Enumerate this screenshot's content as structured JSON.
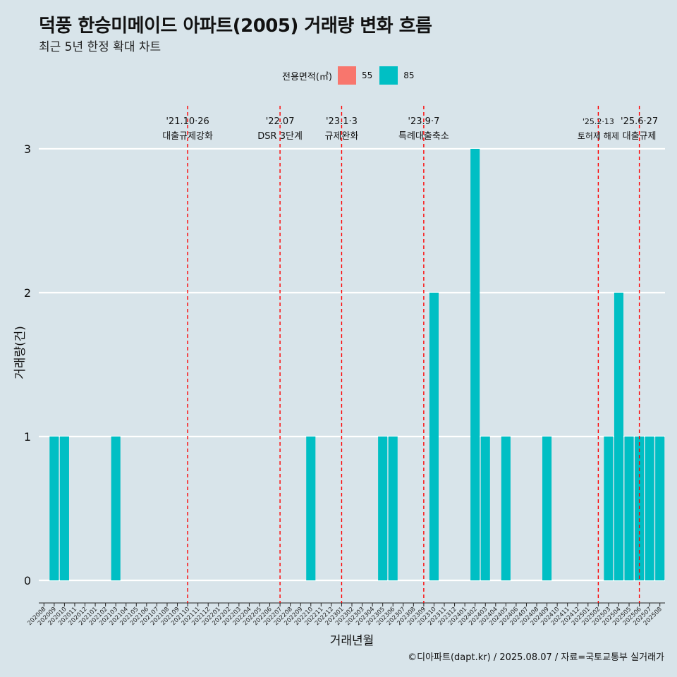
{
  "title": "덕풍 한승미메이드 아파트(2005) 거래량 변화 흐름",
  "subtitle": "최근 5년 한정 확대 차트",
  "caption": "©디아파트(dapt.kr) / 2025.08.07 / 자료=국토교통부 실거래가",
  "legend": {
    "title": "전용면적(㎡)",
    "items": [
      {
        "label": "55",
        "color": "#f8766d"
      },
      {
        "label": "85",
        "color": "#00bfc4"
      }
    ]
  },
  "chart_data": {
    "type": "bar",
    "xlabel": "거래년월",
    "ylabel": "거래량(건)",
    "ylim": [
      0,
      3
    ],
    "yticks": [
      0,
      1,
      2,
      3
    ],
    "grid": true,
    "legend_position": "top",
    "categories": [
      "202008",
      "202009",
      "202010",
      "202011",
      "202012",
      "202101",
      "202102",
      "202103",
      "202104",
      "202105",
      "202106",
      "202107",
      "202108",
      "202109",
      "202110",
      "202111",
      "202112",
      "202201",
      "202202",
      "202203",
      "202204",
      "202205",
      "202206",
      "202207",
      "202208",
      "202209",
      "202210",
      "202211",
      "202212",
      "202301",
      "202302",
      "202303",
      "202304",
      "202305",
      "202306",
      "202307",
      "202308",
      "202309",
      "202310",
      "202311",
      "202312",
      "202401",
      "202402",
      "202403",
      "202404",
      "202405",
      "202406",
      "202407",
      "202408",
      "202409",
      "202410",
      "202411",
      "202412",
      "202501",
      "202502",
      "202503",
      "202504",
      "202505",
      "202506",
      "202507",
      "202508"
    ],
    "series": [
      {
        "name": "85",
        "color": "#00bfc4",
        "values": [
          0,
          1,
          1,
          0,
          0,
          0,
          0,
          1,
          0,
          0,
          0,
          0,
          0,
          0,
          0,
          0,
          0,
          0,
          0,
          0,
          0,
          0,
          0,
          0,
          0,
          0,
          1,
          0,
          0,
          0,
          0,
          0,
          0,
          1,
          1,
          0,
          0,
          0,
          2,
          0,
          0,
          0,
          3,
          1,
          0,
          1,
          0,
          0,
          0,
          1,
          0,
          0,
          0,
          0,
          0,
          1,
          2,
          1,
          1,
          1,
          1
        ]
      }
    ],
    "annotations": [
      {
        "category": "202110",
        "date": "'21.10·26",
        "label": "대출규제강화"
      },
      {
        "category": "202207",
        "date": "'22.07",
        "label": "DSR 3단계"
      },
      {
        "category": "202301",
        "date": "'23.1·3",
        "label": "규제완화"
      },
      {
        "category": "202309",
        "date": "'23.9·7",
        "label": "특례대출축소"
      },
      {
        "category": "202502",
        "date": "'25.2·13",
        "label": "토허제 해제"
      },
      {
        "category": "202506",
        "date": "'25.6·27",
        "label": "대출규제"
      }
    ]
  }
}
